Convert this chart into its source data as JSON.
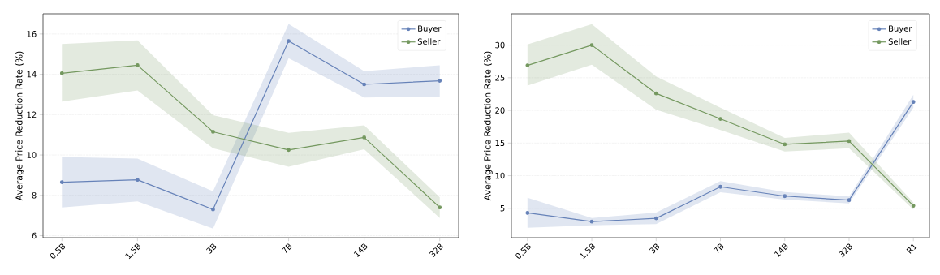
{
  "chart_data": [
    {
      "type": "line",
      "ylabel": "Average Price Reduction Rate (%)",
      "categories": [
        "0.5B",
        "1.5B",
        "3B",
        "7B",
        "14B",
        "32B"
      ],
      "series": [
        {
          "name": "Buyer",
          "color": "#6682b8",
          "values": [
            8.65,
            8.77,
            7.3,
            15.65,
            13.5,
            13.68
          ],
          "lower": [
            7.4,
            7.7,
            6.35,
            14.8,
            12.85,
            12.9
          ],
          "upper": [
            9.9,
            9.82,
            8.2,
            16.5,
            14.15,
            14.45
          ]
        },
        {
          "name": "Seller",
          "color": "#74985f",
          "values": [
            14.05,
            14.45,
            11.15,
            10.25,
            10.87,
            7.4
          ],
          "lower": [
            12.65,
            13.2,
            10.33,
            9.42,
            10.28,
            6.88
          ],
          "upper": [
            15.5,
            15.68,
            11.97,
            11.1,
            11.47,
            7.9
          ]
        }
      ],
      "ylim": [
        5.9,
        17.0
      ],
      "yticks": [
        6,
        8,
        10,
        12,
        14,
        16
      ],
      "grid": "y",
      "legend": "top right",
      "marker": "circle"
    },
    {
      "type": "line",
      "ylabel": "Average Price Reduction Rate (%)",
      "categories": [
        "0.5B",
        "1.5B",
        "3B",
        "7B",
        "14B",
        "32B",
        "R1"
      ],
      "series": [
        {
          "name": "Buyer",
          "color": "#6682b8",
          "values": [
            4.3,
            2.96,
            3.47,
            8.3,
            6.87,
            6.26,
            21.3
          ],
          "lower": [
            2.03,
            2.4,
            2.58,
            7.46,
            6.35,
            5.74,
            20.4
          ],
          "upper": [
            6.63,
            3.5,
            4.35,
            9.18,
            7.5,
            6.81,
            22.4
          ]
        },
        {
          "name": "Seller",
          "color": "#74985f",
          "values": [
            26.9,
            30.0,
            22.6,
            18.7,
            14.8,
            15.3,
            5.4
          ],
          "lower": [
            23.8,
            27.0,
            20.1,
            17.0,
            13.7,
            14.2,
            4.8
          ],
          "upper": [
            30.1,
            33.2,
            25.2,
            20.4,
            15.8,
            16.6,
            5.9
          ]
        }
      ],
      "ylim": [
        0.5,
        34.8
      ],
      "yticks": [
        5,
        10,
        15,
        20,
        25,
        30
      ],
      "grid": "y",
      "legend": "top right",
      "marker": "circle"
    }
  ]
}
